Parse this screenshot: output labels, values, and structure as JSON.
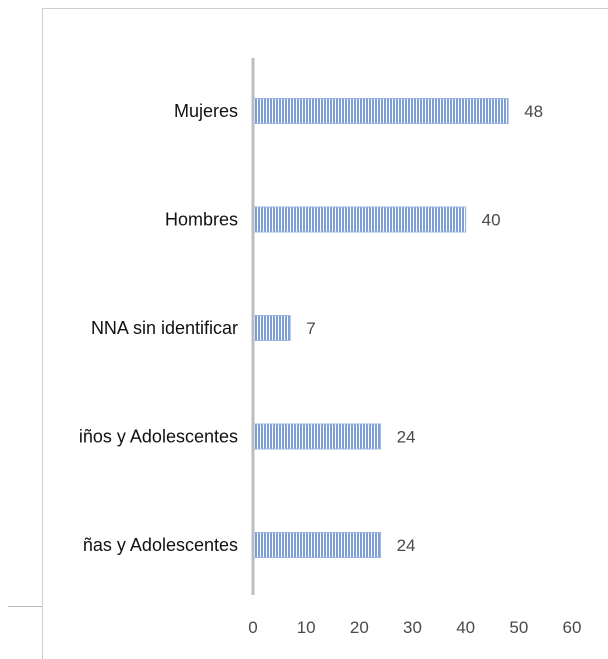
{
  "chart_data": {
    "type": "bar",
    "orientation": "horizontal",
    "categories": [
      "Mujeres",
      "Hombres",
      "NNA sin identificar",
      "Niños y Adolescentes",
      "Niñas y Adolescentes"
    ],
    "visible_category_labels": [
      "Mujeres",
      "Hombres",
      "NNA sin identificar",
      "iños y Adolescentes",
      "ñas y Adolescentes"
    ],
    "values": [
      48,
      40,
      7,
      24,
      24
    ],
    "xlim": [
      0,
      60
    ],
    "x_ticks": [
      0,
      10,
      20,
      30,
      40,
      50,
      60
    ],
    "grid": false,
    "bar_color": "#7b9fd6",
    "bar_stripe_color": "#ffffff",
    "data_labels": true
  }
}
